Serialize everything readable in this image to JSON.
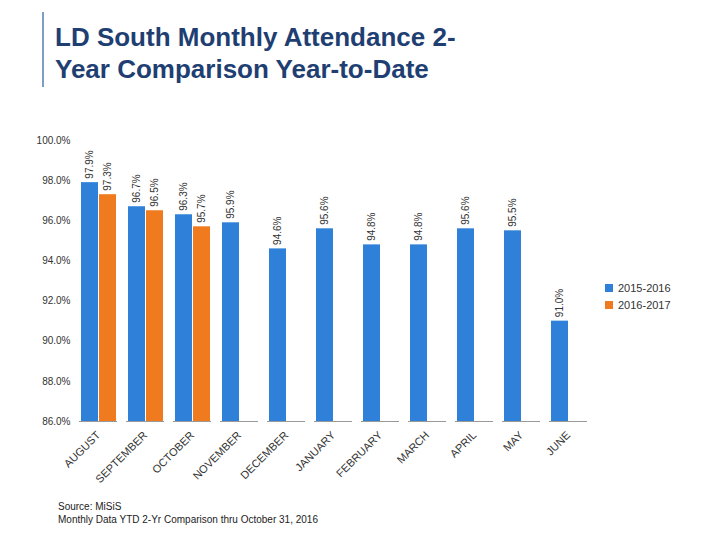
{
  "chart_data": {
    "type": "bar",
    "title": "LD South Monthly Attendance 2-Year Comparison Year-to-Date",
    "caption": [
      "Source: MiSiS",
      "Monthly Data YTD 2-Yr Comparison thru October 31, 2016"
    ],
    "categories": [
      "AUGUST",
      "SEPTEMBER",
      "OCTOBER",
      "NOVEMBER",
      "DECEMBER",
      "JANUARY",
      "FEBRUARY",
      "MARCH",
      "APRIL",
      "MAY",
      "JUNE"
    ],
    "series": [
      {
        "name": "2015-2016",
        "color": "#2f80d8",
        "values": [
          97.9,
          96.7,
          96.3,
          95.9,
          94.6,
          95.6,
          94.8,
          94.8,
          95.6,
          95.5,
          91.0
        ],
        "value_labels": [
          "97.9%",
          "96.7%",
          "96.3%",
          "95.9%",
          "94.6%",
          "95.6%",
          "94.8%",
          "94.8%",
          "95.6%",
          "95.5%",
          "91.0%"
        ]
      },
      {
        "name": "2016-2017",
        "color": "#f07a1e",
        "values": [
          97.3,
          96.5,
          95.7,
          null,
          null,
          null,
          null,
          null,
          null,
          null,
          null
        ],
        "value_labels": [
          "97.3%",
          "96.5%",
          "95.7%",
          null,
          null,
          null,
          null,
          null,
          null,
          null,
          null
        ]
      }
    ],
    "ylim": [
      86,
      100
    ],
    "yticks": [
      {
        "value": 86,
        "label": "86.0%"
      },
      {
        "value": 88,
        "label": "88.0%"
      },
      {
        "value": 90,
        "label": "90.0%"
      },
      {
        "value": 92,
        "label": "92.0%"
      },
      {
        "value": 94,
        "label": "94.0%"
      },
      {
        "value": 96,
        "label": "96.0%"
      },
      {
        "value": 98,
        "label": "98.0%"
      },
      {
        "value": 100,
        "label": "100.0%"
      }
    ],
    "grid": false,
    "data_labels": true,
    "legend": "right"
  }
}
